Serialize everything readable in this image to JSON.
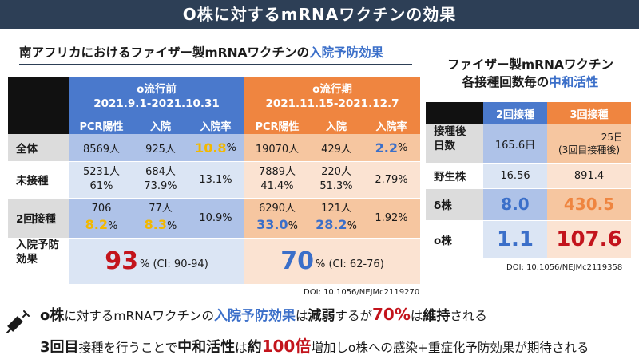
{
  "header": {
    "title": "O株に対するmRNAワクチンの効果"
  },
  "left": {
    "title_pre": "南アフリカにおけるファイザー製mRNAワクチンの",
    "title_hl": "入院予防効果",
    "period1": {
      "name": "o流行前",
      "dates": "2021.9.1-2021.10.31"
    },
    "period2": {
      "name": "o流行期",
      "dates": "2021.11.15-2021.12.7"
    },
    "cols": {
      "pcr": "PCR陽性",
      "hosp": "入院",
      "rate": "入院率"
    },
    "rows": {
      "all": {
        "label": "全体",
        "p1_pcr": "8569人",
        "p1_hosp": "925人",
        "p1_rate": "10.8",
        "p2_pcr": "19070人",
        "p2_hosp": "429人",
        "p2_rate": "2.2",
        "pct": "%"
      },
      "unvax": {
        "label": "未接種",
        "p1_pcr": "5231人",
        "p1_pcr_pct": "61%",
        "p1_hosp": "684人",
        "p1_hosp_pct": "73.9%",
        "p1_rate": "13.1%",
        "p2_pcr": "7889人",
        "p2_pcr_pct": "41.4%",
        "p2_hosp": "220人",
        "p2_hosp_pct": "51.3%",
        "p2_rate": "2.79%"
      },
      "dose2": {
        "label": "2回接種",
        "p1_pcr": "706",
        "p1_pcr_pct": "8.2",
        "p1_hosp": "77人",
        "p1_hosp_pct": "8.3",
        "p1_rate": "10.9%",
        "p2_pcr": "6290人",
        "p2_pcr_pct": "33.0",
        "p2_hosp": "121人",
        "p2_hosp_pct": "28.2",
        "p2_rate": "1.92%",
        "pct": "%"
      },
      "effect": {
        "label_l1": "入院予防",
        "label_l2": "効果",
        "p1_val": "93",
        "p1_ci": "% (CI: 90-94)",
        "p2_val": "70",
        "p2_ci": "% (CI: 62-76)"
      }
    },
    "doi": "DOI: 10.1056/NEJMc2119270"
  },
  "right": {
    "title_l1": "ファイザー製mRNAワクチン",
    "title_l2_pre": "各接種回数毎の",
    "title_l2_hl": "中和活性",
    "col2": "2回接種",
    "col3": "3回接種",
    "rows": {
      "days": {
        "label_l1": "接種後",
        "label_l2": "日数",
        "v2": "165.6日",
        "v3_l1": "25日",
        "v3_l2": "(3回目接種後)"
      },
      "wild": {
        "label": "野生株",
        "v2": "16.56",
        "v3": "891.4"
      },
      "delta": {
        "label": "δ株",
        "v2": "8.0",
        "v3": "430.5"
      },
      "omicron": {
        "label": "o株",
        "v2": "1.1",
        "v3": "107.6"
      }
    },
    "doi": "DOI: 10.1056/NEJMc2119358"
  },
  "bottom": {
    "line1": {
      "a": "o株",
      "b": "に対するmRNAワクチンの",
      "c": "入院予防効果",
      "d": "は",
      "e": "減弱",
      "f": "するが",
      "g": "70%",
      "h": "は",
      "i": "維持",
      "j": "される"
    },
    "line2": {
      "a": "3回目",
      "b": "接種を行うことで",
      "c": "中和活性",
      "d": "は",
      "e": "約",
      "f": "100倍",
      "g": "増加しo株への感染+重症化予防効果が期待される"
    }
  },
  "icons": {
    "syringe": "syringe-icon"
  },
  "colors": {
    "header_bg": "#2d3f56",
    "blue": "#4a79cc",
    "orange": "#ef8540",
    "red": "#c3141c",
    "yellow": "#f2b800"
  }
}
